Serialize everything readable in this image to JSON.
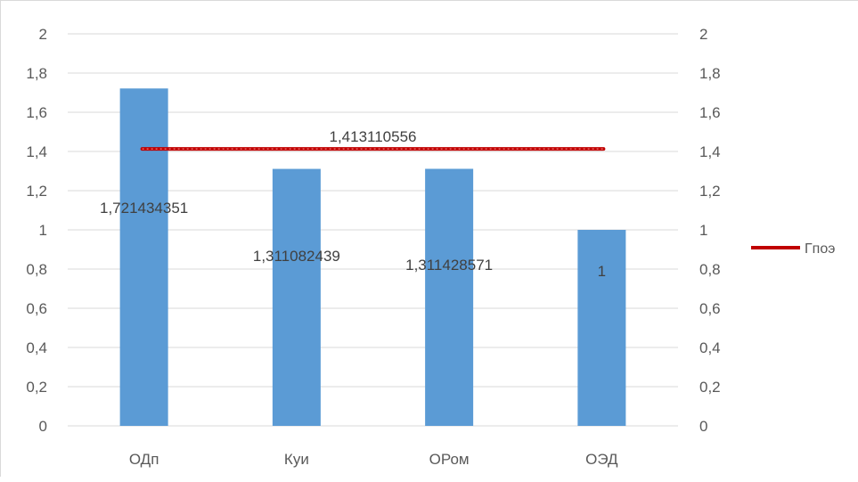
{
  "chart_data": {
    "type": "bar",
    "title": "",
    "xlabel": "",
    "ylabel": "",
    "categories": [
      "ОДп",
      "Куи",
      "ОРом",
      "ОЭД"
    ],
    "series": [
      {
        "type": "bar",
        "values": [
          1.721434351,
          1.311082439,
          1.311428571,
          1
        ],
        "labels": [
          "1,721434351",
          "1,311082439",
          "1,311428571",
          "1"
        ],
        "color": "#5b9bd5"
      },
      {
        "name": "Гпоэ",
        "type": "line",
        "value": 1.413110556,
        "label": "1,413110556",
        "color": "#c00000"
      }
    ],
    "ylim": [
      0,
      2
    ],
    "y_ticks": [
      "0",
      "0,2",
      "0,4",
      "0,6",
      "0,8",
      "1",
      "1,2",
      "1,4",
      "1,6",
      "1,8",
      "2"
    ],
    "y2_ticks": [
      "0",
      "0,2",
      "0,4",
      "0,6",
      "0,8",
      "1",
      "1,2",
      "1,4",
      "1,6",
      "1,8",
      "2"
    ],
    "grid": true,
    "legend": "right",
    "legend_entries": [
      "Гпоэ"
    ]
  }
}
